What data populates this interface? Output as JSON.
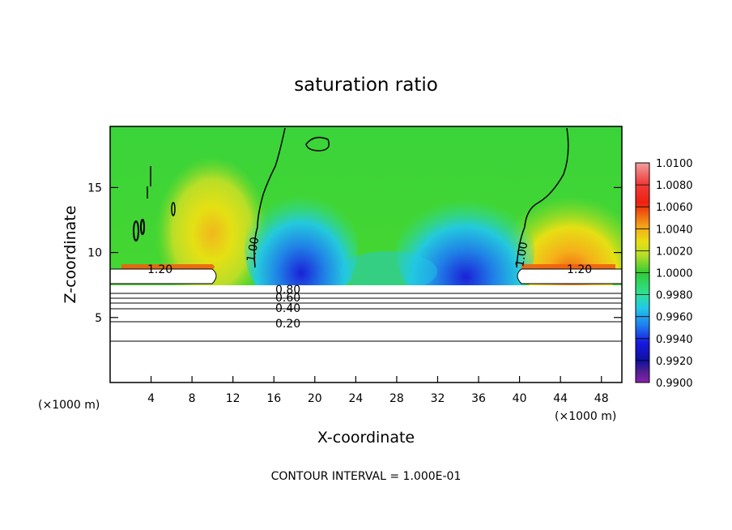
{
  "chart_data": {
    "type": "heatmap",
    "title": "saturation ratio",
    "xlabel": "X-coordinate",
    "ylabel": "Z-coordinate",
    "x_unit": "(×1000 m)",
    "y_unit": "(×1000 m)",
    "xlim": [
      0,
      50
    ],
    "ylim": [
      0,
      19.7
    ],
    "xticks": [
      "4",
      "8",
      "12",
      "16",
      "20",
      "24",
      "28",
      "32",
      "36",
      "40",
      "44",
      "48"
    ],
    "yticks": [
      "5",
      "10",
      "15"
    ],
    "colorbar": {
      "labels": [
        "1.0100",
        "1.0080",
        "1.0060",
        "1.0040",
        "1.0020",
        "1.0000",
        "0.9980",
        "0.9960",
        "0.9940",
        "0.9920",
        "0.9900"
      ],
      "colors": [
        "#f2a0a0",
        "#f04040",
        "#ee2010",
        "#f06a10",
        "#f5b01a",
        "#e6df14",
        "#b6de28",
        "#33cc33",
        "#2ee09a",
        "#22c8e6",
        "#1e7ef0",
        "#1818e0",
        "#1010a0",
        "#502090",
        "#8a20b0"
      ]
    },
    "contour_labels": [
      "1.20",
      "1.00",
      "1.00",
      "1.20",
      "0.80",
      "0.60",
      "0.40",
      "0.20"
    ],
    "footer": "CONTOUR INTERVAL = 1.000E-01"
  }
}
